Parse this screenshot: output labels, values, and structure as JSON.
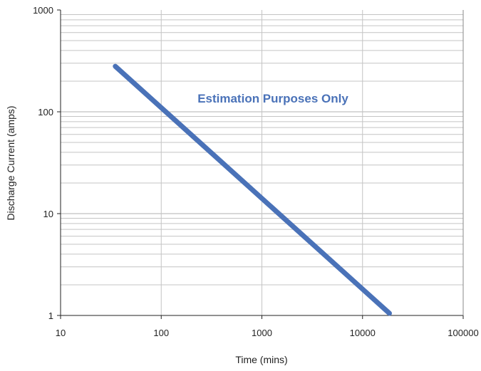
{
  "chart_data": {
    "type": "line",
    "xscale": "log",
    "yscale": "log",
    "xlim": [
      10,
      100000
    ],
    "ylim": [
      1,
      1000
    ],
    "xlabel": "Time (mins)",
    "ylabel": "Discharge Current (amps)",
    "x_ticks": [
      "10",
      "100",
      "1000",
      "10000",
      "100000"
    ],
    "y_ticks": [
      "1",
      "10",
      "100",
      "1000"
    ],
    "grid": true,
    "annotation": "Estimation Purposes Only",
    "series": [
      {
        "color": "#4a72b8",
        "points": [
          {
            "x": 35,
            "y": 280
          },
          {
            "x": 18500,
            "y": 1.05
          }
        ]
      }
    ]
  }
}
